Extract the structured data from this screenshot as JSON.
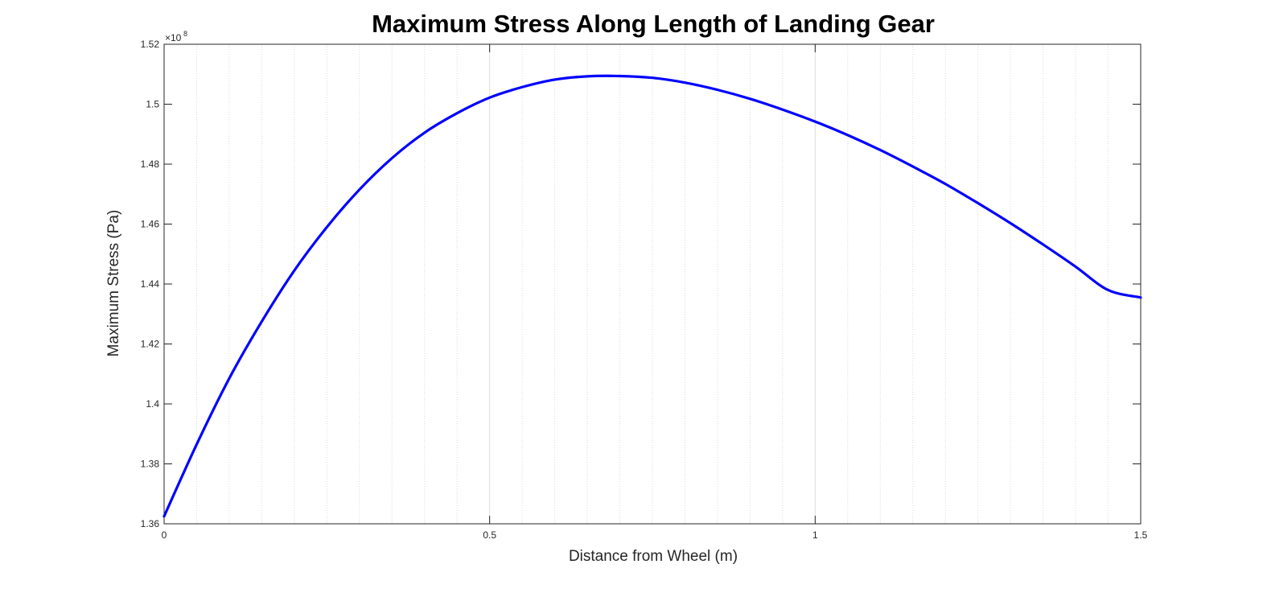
{
  "chart_data": {
    "type": "line",
    "title": "Maximum Stress Along Length of Landing Gear",
    "xlabel": "Distance from Wheel (m)",
    "ylabel": "Maximum Stress (Pa)",
    "y_exponent": "8",
    "xlim": [
      0,
      1.5
    ],
    "ylim": [
      1.36,
      1.52
    ],
    "x_ticks": [
      0,
      0.5,
      1,
      1.5
    ],
    "x_tick_labels": [
      "0",
      "0.5",
      "1",
      "1.5"
    ],
    "y_ticks": [
      1.36,
      1.38,
      1.4,
      1.42,
      1.44,
      1.46,
      1.48,
      1.5,
      1.52
    ],
    "y_tick_labels": [
      "1.36",
      "1.38",
      "1.4",
      "1.42",
      "1.44",
      "1.46",
      "1.48",
      "1.5",
      "1.52"
    ],
    "grid": true,
    "minor_grid": true,
    "series": [
      {
        "color": "#0000ff",
        "x": [
          0,
          0.05,
          0.1,
          0.15,
          0.2,
          0.25,
          0.3,
          0.35,
          0.4,
          0.45,
          0.5,
          0.55,
          0.6,
          0.65,
          0.7,
          0.75,
          0.8,
          0.85,
          0.9,
          0.95,
          1.0,
          1.05,
          1.1,
          1.15,
          1.2,
          1.25,
          1.3,
          1.35,
          1.4,
          1.45,
          1.5
        ],
        "y": [
          1.3625,
          1.3865,
          1.4085,
          1.4275,
          1.4445,
          1.459,
          1.4715,
          1.482,
          1.4905,
          1.497,
          1.5022,
          1.5057,
          1.5082,
          1.5093,
          1.5094,
          1.5088,
          1.5072,
          1.5048,
          1.5018,
          1.4982,
          1.4942,
          1.4897,
          1.4847,
          1.4792,
          1.4734,
          1.467,
          1.4603,
          1.4532,
          1.4458,
          1.438,
          1.4355
        ]
      }
    ]
  }
}
